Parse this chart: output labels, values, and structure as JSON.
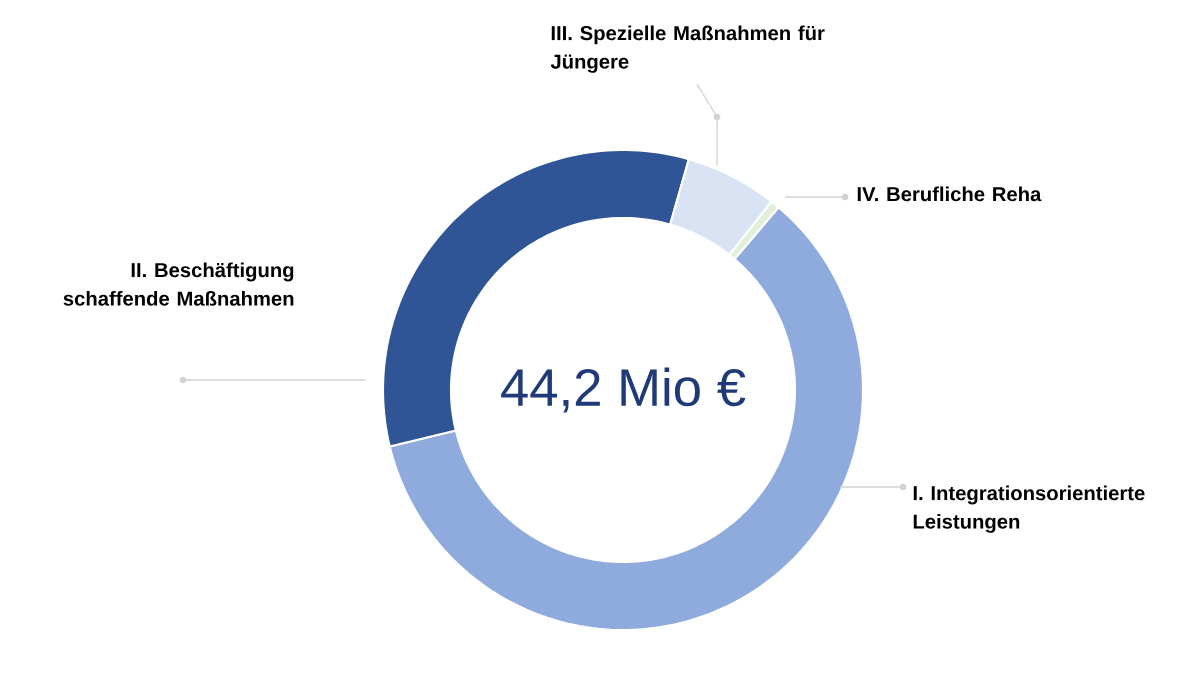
{
  "chart_data": {
    "type": "donut",
    "categories": [
      "I. Integrationsorientierte Leistungen",
      "II. Beschäftigung schaffende Maßnahmen",
      "III. Spezielle Maßnahmen für Jüngere",
      "IV. Berufliche Reha"
    ],
    "values": [
      60,
      33.2,
      6.2,
      0.6
    ],
    "colors": [
      "#8faadc",
      "#2f5597",
      "#dae3f3",
      "#e2f0d9"
    ],
    "annotations": [
      "44,2 Mio €"
    ]
  }
}
